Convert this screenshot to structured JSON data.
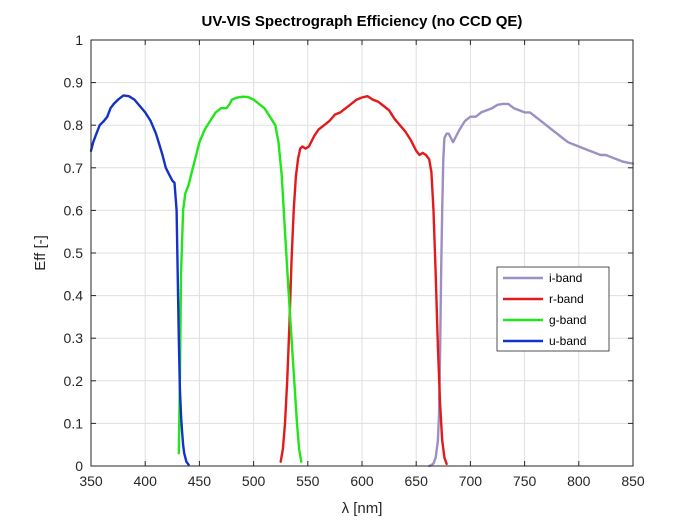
{
  "chart_data": {
    "type": "line",
    "title": "UV-VIS Spectrograph Efficiency (no CCD QE)",
    "xlabel": "λ [nm]",
    "ylabel": "Eff [-]",
    "xlim": [
      350,
      850
    ],
    "ylim": [
      0,
      1
    ],
    "x_ticks": [
      350,
      400,
      450,
      500,
      550,
      600,
      650,
      700,
      750,
      800,
      850
    ],
    "x_tick_labels": [
      "350",
      "400",
      "450",
      "500",
      "550",
      "600",
      "650",
      "700",
      "750",
      "800",
      "850"
    ],
    "y_ticks": [
      0,
      0.1,
      0.2,
      0.3,
      0.4,
      0.5,
      0.6,
      0.7,
      0.8,
      0.9,
      1
    ],
    "y_tick_labels": [
      "0",
      "0.1",
      "0.2",
      "0.3",
      "0.4",
      "0.5",
      "0.6",
      "0.7",
      "0.8",
      "0.9",
      "1"
    ],
    "grid": true,
    "legend_position": "right",
    "series": [
      {
        "name": "i-band",
        "color": "#9e8fc2",
        "points": [
          [
            662,
            0
          ],
          [
            664,
            0.002
          ],
          [
            666,
            0.006
          ],
          [
            668,
            0.02
          ],
          [
            670,
            0.06
          ],
          [
            671,
            0.12
          ],
          [
            672,
            0.25
          ],
          [
            673,
            0.45
          ],
          [
            674,
            0.6
          ],
          [
            675,
            0.72
          ],
          [
            676,
            0.77
          ],
          [
            678,
            0.78
          ],
          [
            680,
            0.78
          ],
          [
            682,
            0.77
          ],
          [
            684,
            0.76
          ],
          [
            686,
            0.77
          ],
          [
            690,
            0.79
          ],
          [
            695,
            0.81
          ],
          [
            700,
            0.82
          ],
          [
            705,
            0.82
          ],
          [
            710,
            0.83
          ],
          [
            715,
            0.835
          ],
          [
            720,
            0.84
          ],
          [
            725,
            0.848
          ],
          [
            730,
            0.85
          ],
          [
            735,
            0.85
          ],
          [
            740,
            0.84
          ],
          [
            745,
            0.835
          ],
          [
            750,
            0.83
          ],
          [
            755,
            0.83
          ],
          [
            760,
            0.82
          ],
          [
            765,
            0.81
          ],
          [
            770,
            0.8
          ],
          [
            775,
            0.79
          ],
          [
            780,
            0.78
          ],
          [
            785,
            0.77
          ],
          [
            790,
            0.76
          ],
          [
            795,
            0.755
          ],
          [
            800,
            0.75
          ],
          [
            805,
            0.745
          ],
          [
            810,
            0.74
          ],
          [
            815,
            0.735
          ],
          [
            820,
            0.73
          ],
          [
            825,
            0.73
          ],
          [
            830,
            0.725
          ],
          [
            835,
            0.72
          ],
          [
            840,
            0.715
          ],
          [
            845,
            0.712
          ],
          [
            850,
            0.71
          ]
        ]
      },
      {
        "name": "r-band",
        "color": "#e31a1c",
        "points": [
          [
            525,
            0.01
          ],
          [
            527,
            0.04
          ],
          [
            529,
            0.1
          ],
          [
            531,
            0.2
          ],
          [
            533,
            0.33
          ],
          [
            535,
            0.48
          ],
          [
            537,
            0.6
          ],
          [
            539,
            0.68
          ],
          [
            541,
            0.72
          ],
          [
            543,
            0.745
          ],
          [
            545,
            0.75
          ],
          [
            548,
            0.745
          ],
          [
            551,
            0.75
          ],
          [
            553,
            0.76
          ],
          [
            556,
            0.775
          ],
          [
            560,
            0.79
          ],
          [
            565,
            0.8
          ],
          [
            570,
            0.81
          ],
          [
            575,
            0.825
          ],
          [
            580,
            0.83
          ],
          [
            585,
            0.84
          ],
          [
            590,
            0.85
          ],
          [
            595,
            0.86
          ],
          [
            600,
            0.865
          ],
          [
            605,
            0.868
          ],
          [
            610,
            0.86
          ],
          [
            615,
            0.855
          ],
          [
            620,
            0.845
          ],
          [
            625,
            0.835
          ],
          [
            630,
            0.815
          ],
          [
            635,
            0.8
          ],
          [
            640,
            0.785
          ],
          [
            645,
            0.765
          ],
          [
            650,
            0.74
          ],
          [
            653,
            0.73
          ],
          [
            656,
            0.735
          ],
          [
            659,
            0.73
          ],
          [
            662,
            0.72
          ],
          [
            664,
            0.69
          ],
          [
            666,
            0.6
          ],
          [
            668,
            0.45
          ],
          [
            670,
            0.28
          ],
          [
            672,
            0.15
          ],
          [
            674,
            0.06
          ],
          [
            676,
            0.02
          ],
          [
            678,
            0.005
          ]
        ]
      },
      {
        "name": "g-band",
        "color": "#22e51b",
        "points": [
          [
            431,
            0.03
          ],
          [
            432,
            0.2
          ],
          [
            433,
            0.45
          ],
          [
            435,
            0.6
          ],
          [
            437,
            0.64
          ],
          [
            440,
            0.66
          ],
          [
            443,
            0.69
          ],
          [
            446,
            0.72
          ],
          [
            450,
            0.76
          ],
          [
            455,
            0.79
          ],
          [
            460,
            0.81
          ],
          [
            465,
            0.83
          ],
          [
            470,
            0.84
          ],
          [
            475,
            0.84
          ],
          [
            478,
            0.85
          ],
          [
            480,
            0.86
          ],
          [
            485,
            0.865
          ],
          [
            490,
            0.867
          ],
          [
            495,
            0.866
          ],
          [
            500,
            0.86
          ],
          [
            505,
            0.85
          ],
          [
            510,
            0.84
          ],
          [
            515,
            0.82
          ],
          [
            520,
            0.8
          ],
          [
            523,
            0.76
          ],
          [
            526,
            0.68
          ],
          [
            529,
            0.55
          ],
          [
            532,
            0.42
          ],
          [
            535,
            0.3
          ],
          [
            538,
            0.18
          ],
          [
            540,
            0.1
          ],
          [
            542,
            0.04
          ],
          [
            544,
            0.01
          ]
        ]
      },
      {
        "name": "u-band",
        "color": "#1432c8",
        "points": [
          [
            350,
            0.74
          ],
          [
            352,
            0.76
          ],
          [
            355,
            0.78
          ],
          [
            358,
            0.8
          ],
          [
            362,
            0.81
          ],
          [
            365,
            0.82
          ],
          [
            368,
            0.84
          ],
          [
            371,
            0.85
          ],
          [
            375,
            0.86
          ],
          [
            380,
            0.87
          ],
          [
            385,
            0.868
          ],
          [
            390,
            0.86
          ],
          [
            395,
            0.845
          ],
          [
            400,
            0.83
          ],
          [
            405,
            0.81
          ],
          [
            410,
            0.78
          ],
          [
            413,
            0.755
          ],
          [
            416,
            0.73
          ],
          [
            419,
            0.7
          ],
          [
            422,
            0.685
          ],
          [
            425,
            0.67
          ],
          [
            427,
            0.665
          ],
          [
            429,
            0.6
          ],
          [
            430,
            0.45
          ],
          [
            431,
            0.3
          ],
          [
            432,
            0.18
          ],
          [
            433,
            0.12
          ],
          [
            434,
            0.08
          ],
          [
            435,
            0.05
          ],
          [
            436,
            0.03
          ],
          [
            438,
            0.01
          ],
          [
            440,
            0.003
          ]
        ]
      }
    ]
  }
}
